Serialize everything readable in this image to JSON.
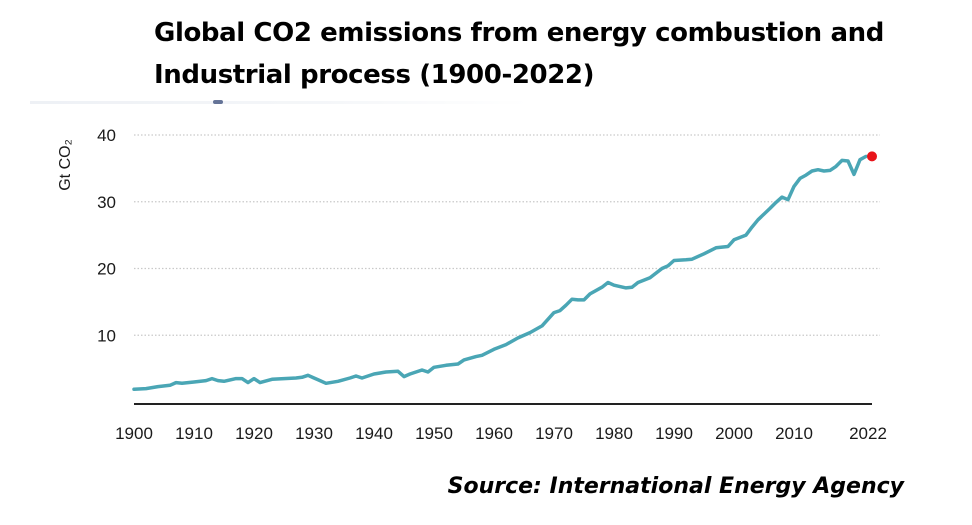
{
  "chart_data": {
    "type": "line",
    "title": "Global CO2 emissions from energy combustion and\nIndustrial process (1900-2022)",
    "xlabel": "",
    "ylabel": "Gt CO₂",
    "xlim": [
      1900,
      2022
    ],
    "ylim": [
      0,
      40
    ],
    "grid": "horizontal-dotted",
    "legend": "none",
    "x_ticks": [
      1900,
      1910,
      1920,
      1930,
      1940,
      1950,
      1960,
      1970,
      1980,
      1990,
      2000,
      2010,
      2022
    ],
    "x_tick_labels": [
      "1900",
      "1910",
      "1920",
      "1930",
      "1940",
      "1950",
      "1960",
      "1970",
      "1980",
      "1990",
      "2000",
      "2010",
      "2022"
    ],
    "y_ticks": [
      10,
      20,
      30,
      40
    ],
    "y_tick_labels": [
      "10",
      "20",
      "30",
      "40"
    ],
    "series": [
      {
        "name": "CO2 emissions",
        "color": "#4aa6b5",
        "points": [
          [
            1900,
            1.9
          ],
          [
            1902,
            2.0
          ],
          [
            1904,
            2.3
          ],
          [
            1906,
            2.5
          ],
          [
            1907,
            2.9
          ],
          [
            1908,
            2.8
          ],
          [
            1910,
            3.0
          ],
          [
            1912,
            3.2
          ],
          [
            1913,
            3.5
          ],
          [
            1914,
            3.2
          ],
          [
            1915,
            3.1
          ],
          [
            1917,
            3.5
          ],
          [
            1918,
            3.5
          ],
          [
            1919,
            2.9
          ],
          [
            1920,
            3.5
          ],
          [
            1921,
            2.9
          ],
          [
            1923,
            3.4
          ],
          [
            1925,
            3.5
          ],
          [
            1927,
            3.6
          ],
          [
            1928,
            3.7
          ],
          [
            1929,
            4.0
          ],
          [
            1930,
            3.6
          ],
          [
            1931,
            3.2
          ],
          [
            1932,
            2.8
          ],
          [
            1934,
            3.1
          ],
          [
            1936,
            3.6
          ],
          [
            1937,
            3.9
          ],
          [
            1938,
            3.6
          ],
          [
            1940,
            4.2
          ],
          [
            1942,
            4.5
          ],
          [
            1944,
            4.6
          ],
          [
            1945,
            3.8
          ],
          [
            1946,
            4.2
          ],
          [
            1948,
            4.8
          ],
          [
            1949,
            4.5
          ],
          [
            1950,
            5.2
          ],
          [
            1952,
            5.5
          ],
          [
            1954,
            5.7
          ],
          [
            1955,
            6.3
          ],
          [
            1957,
            6.8
          ],
          [
            1958,
            7.0
          ],
          [
            1960,
            7.9
          ],
          [
            1962,
            8.6
          ],
          [
            1964,
            9.6
          ],
          [
            1966,
            10.4
          ],
          [
            1968,
            11.4
          ],
          [
            1970,
            13.4
          ],
          [
            1971,
            13.7
          ],
          [
            1972,
            14.5
          ],
          [
            1973,
            15.4
          ],
          [
            1974,
            15.3
          ],
          [
            1975,
            15.3
          ],
          [
            1976,
            16.2
          ],
          [
            1978,
            17.2
          ],
          [
            1979,
            17.9
          ],
          [
            1980,
            17.5
          ],
          [
            1982,
            17.1
          ],
          [
            1983,
            17.2
          ],
          [
            1984,
            17.9
          ],
          [
            1986,
            18.6
          ],
          [
            1988,
            20.0
          ],
          [
            1989,
            20.4
          ],
          [
            1990,
            21.2
          ],
          [
            1992,
            21.3
          ],
          [
            1993,
            21.4
          ],
          [
            1995,
            22.2
          ],
          [
            1997,
            23.1
          ],
          [
            1999,
            23.3
          ],
          [
            2000,
            24.3
          ],
          [
            2002,
            25.0
          ],
          [
            2003,
            26.2
          ],
          [
            2004,
            27.3
          ],
          [
            2006,
            29.0
          ],
          [
            2007,
            29.9
          ],
          [
            2008,
            30.7
          ],
          [
            2009,
            30.3
          ],
          [
            2010,
            32.3
          ],
          [
            2011,
            33.5
          ],
          [
            2012,
            34.0
          ],
          [
            2013,
            34.6
          ],
          [
            2014,
            34.8
          ],
          [
            2015,
            34.6
          ],
          [
            2016,
            34.7
          ],
          [
            2017,
            35.3
          ],
          [
            2018,
            36.2
          ],
          [
            2019,
            36.1
          ],
          [
            2020,
            34.1
          ],
          [
            2021,
            36.3
          ],
          [
            2022,
            36.8
          ]
        ]
      }
    ],
    "highlight_point": {
      "x": 2022,
      "y": 36.8,
      "color": "#e8141a"
    },
    "source": "Source: International Energy Agency"
  },
  "colors": {
    "line": "#4aa6b5",
    "highlight": "#e8141a",
    "axis": "#222222",
    "grid": "#c9c9c9",
    "text": "#1a1a1a"
  }
}
